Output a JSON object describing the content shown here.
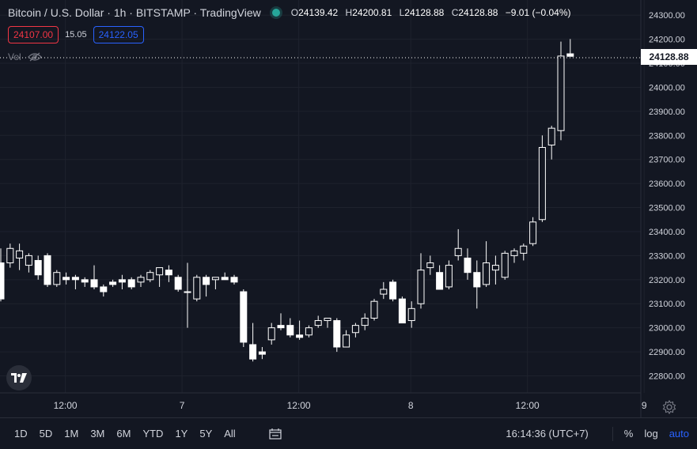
{
  "header": {
    "symbol": "Bitcoin / U.S. Dollar · 1h · BITSTAMP · TradingView",
    "o_label": "O",
    "o_value": "24139.42",
    "h_label": "H",
    "h_value": "24200.81",
    "l_label": "L",
    "l_value": "24128.88",
    "c_label": "C",
    "c_value": "24128.88",
    "change": "−9.01 (−0.04%)"
  },
  "trade": {
    "sell": "24107.00",
    "spread": "15.05",
    "buy": "24122.05"
  },
  "volume": {
    "label": "Vol"
  },
  "colors": {
    "background": "#131722",
    "candle": "#ffffff",
    "grid": "#1e222d",
    "text": "#d1d4dc",
    "accent": "#2962ff",
    "sell": "#f23645",
    "live_dot": "#26a69a"
  },
  "bottom_bar": {
    "ranges": [
      "1D",
      "5D",
      "1M",
      "3M",
      "6M",
      "YTD",
      "1Y",
      "5Y",
      "All"
    ],
    "clock": "16:14:36 (UTC+7)",
    "percent": "%",
    "log": "log",
    "auto": "auto"
  },
  "chart_data": {
    "type": "candlestick",
    "y_axis": {
      "ticks": [
        22800,
        22900,
        23000,
        23100,
        23200,
        23300,
        23400,
        23500,
        23600,
        23700,
        23800,
        23900,
        24000,
        24100,
        24200,
        24300
      ]
    },
    "x_axis": {
      "tick_labels": [
        "12:00",
        "7",
        "12:00",
        "8",
        "12:00",
        "9"
      ]
    },
    "last_price": "24128.88",
    "candles": [
      {
        "o": 23270,
        "h": 23330,
        "l": 23110,
        "c": 23120
      },
      {
        "o": 23270,
        "h": 23350,
        "l": 23250,
        "c": 23330
      },
      {
        "o": 23290,
        "h": 23350,
        "l": 23240,
        "c": 23320
      },
      {
        "o": 23260,
        "h": 23310,
        "l": 23230,
        "c": 23300
      },
      {
        "o": 23280,
        "h": 23300,
        "l": 23200,
        "c": 23220
      },
      {
        "o": 23300,
        "h": 23310,
        "l": 23170,
        "c": 23180
      },
      {
        "o": 23180,
        "h": 23240,
        "l": 23170,
        "c": 23230
      },
      {
        "o": 23210,
        "h": 23230,
        "l": 23180,
        "c": 23200
      },
      {
        "o": 23210,
        "h": 23220,
        "l": 23160,
        "c": 23200
      },
      {
        "o": 23200,
        "h": 23210,
        "l": 23170,
        "c": 23190
      },
      {
        "o": 23200,
        "h": 23260,
        "l": 23160,
        "c": 23170
      },
      {
        "o": 23170,
        "h": 23180,
        "l": 23130,
        "c": 23150
      },
      {
        "o": 23190,
        "h": 23200,
        "l": 23170,
        "c": 23180
      },
      {
        "o": 23200,
        "h": 23220,
        "l": 23160,
        "c": 23190
      },
      {
        "o": 23200,
        "h": 23210,
        "l": 23160,
        "c": 23170
      },
      {
        "o": 23190,
        "h": 23220,
        "l": 23170,
        "c": 23210
      },
      {
        "o": 23200,
        "h": 23240,
        "l": 23190,
        "c": 23230
      },
      {
        "o": 23220,
        "h": 23250,
        "l": 23170,
        "c": 23250
      },
      {
        "o": 23240,
        "h": 23260,
        "l": 23190,
        "c": 23220
      },
      {
        "o": 23210,
        "h": 23220,
        "l": 23150,
        "c": 23160
      },
      {
        "o": 23150,
        "h": 23270,
        "l": 23000,
        "c": 23150
      },
      {
        "o": 23120,
        "h": 23220,
        "l": 23110,
        "c": 23210
      },
      {
        "o": 23210,
        "h": 23220,
        "l": 23130,
        "c": 23180
      },
      {
        "o": 23200,
        "h": 23210,
        "l": 23160,
        "c": 23210
      },
      {
        "o": 23210,
        "h": 23230,
        "l": 23200,
        "c": 23200
      },
      {
        "o": 23210,
        "h": 23220,
        "l": 23180,
        "c": 23190
      },
      {
        "o": 23150,
        "h": 23160,
        "l": 22920,
        "c": 22940
      },
      {
        "o": 22930,
        "h": 23020,
        "l": 22860,
        "c": 22870
      },
      {
        "o": 22900,
        "h": 22920,
        "l": 22870,
        "c": 22890
      },
      {
        "o": 22950,
        "h": 23020,
        "l": 22930,
        "c": 23000
      },
      {
        "o": 23010,
        "h": 23060,
        "l": 22990,
        "c": 23000
      },
      {
        "o": 23010,
        "h": 23040,
        "l": 22960,
        "c": 22970
      },
      {
        "o": 22970,
        "h": 23030,
        "l": 22950,
        "c": 22960
      },
      {
        "o": 22970,
        "h": 23010,
        "l": 22960,
        "c": 23000
      },
      {
        "o": 23010,
        "h": 23050,
        "l": 23000,
        "c": 23030
      },
      {
        "o": 23030,
        "h": 23040,
        "l": 23000,
        "c": 23040
      },
      {
        "o": 23030,
        "h": 23040,
        "l": 22900,
        "c": 22920
      },
      {
        "o": 22920,
        "h": 22990,
        "l": 22920,
        "c": 22970
      },
      {
        "o": 22980,
        "h": 23020,
        "l": 22960,
        "c": 23010
      },
      {
        "o": 23010,
        "h": 23060,
        "l": 22990,
        "c": 23040
      },
      {
        "o": 23040,
        "h": 23120,
        "l": 23030,
        "c": 23110
      },
      {
        "o": 23140,
        "h": 23190,
        "l": 23120,
        "c": 23160
      },
      {
        "o": 23190,
        "h": 23200,
        "l": 23110,
        "c": 23120
      },
      {
        "o": 23120,
        "h": 23130,
        "l": 23020,
        "c": 23020
      },
      {
        "o": 23030,
        "h": 23110,
        "l": 23000,
        "c": 23080
      },
      {
        "o": 23100,
        "h": 23310,
        "l": 23080,
        "c": 23240
      },
      {
        "o": 23250,
        "h": 23300,
        "l": 23220,
        "c": 23270
      },
      {
        "o": 23230,
        "h": 23260,
        "l": 23160,
        "c": 23160
      },
      {
        "o": 23170,
        "h": 23280,
        "l": 23160,
        "c": 23260
      },
      {
        "o": 23300,
        "h": 23410,
        "l": 23280,
        "c": 23330
      },
      {
        "o": 23290,
        "h": 23330,
        "l": 23200,
        "c": 23230
      },
      {
        "o": 23230,
        "h": 23280,
        "l": 23080,
        "c": 23170
      },
      {
        "o": 23180,
        "h": 23360,
        "l": 23170,
        "c": 23270
      },
      {
        "o": 23240,
        "h": 23300,
        "l": 23180,
        "c": 23260
      },
      {
        "o": 23210,
        "h": 23320,
        "l": 23200,
        "c": 23310
      },
      {
        "o": 23300,
        "h": 23330,
        "l": 23270,
        "c": 23320
      },
      {
        "o": 23310,
        "h": 23350,
        "l": 23280,
        "c": 23340
      },
      {
        "o": 23350,
        "h": 23460,
        "l": 23340,
        "c": 23440
      },
      {
        "o": 23450,
        "h": 23800,
        "l": 23440,
        "c": 23750
      },
      {
        "o": 23760,
        "h": 23840,
        "l": 23700,
        "c": 23830
      },
      {
        "o": 23820,
        "h": 24190,
        "l": 23780,
        "c": 24130
      },
      {
        "o": 24139.42,
        "h": 24200.81,
        "l": 24128.88,
        "c": 24128.88
      }
    ]
  }
}
